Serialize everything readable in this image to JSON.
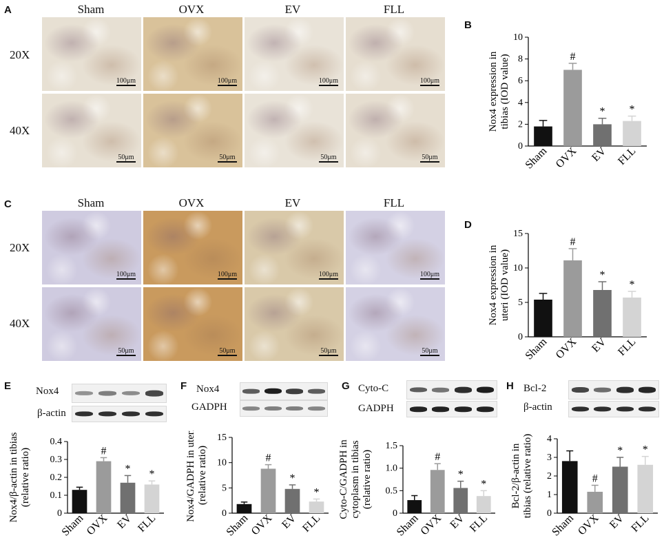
{
  "panels": {
    "A": {
      "letter": "A",
      "columns": [
        "Sham",
        "OVX",
        "EV",
        "FLL"
      ],
      "rows": [
        "20X",
        "40X"
      ],
      "scale_20x": "100μm",
      "scale_40x": "50μm",
      "tissue_colors": [
        "#e7e0d3",
        "#d9c29a",
        "#e9e3d8",
        "#e6ded0"
      ]
    },
    "C": {
      "letter": "C",
      "columns": [
        "Sham",
        "OVX",
        "EV",
        "FLL"
      ],
      "rows": [
        "20X",
        "40X"
      ],
      "scale_20x": "100μm",
      "scale_40x": "50μm",
      "tissue_colors": [
        "#cfcbe0",
        "#c99a5e",
        "#d9c9a9",
        "#d4d1e4"
      ]
    },
    "E": {
      "letter": "E",
      "blots": [
        "Nox4",
        "β-actin"
      ]
    },
    "F": {
      "letter": "F",
      "blots": [
        "Nox4",
        "GADPH"
      ]
    },
    "G": {
      "letter": "G",
      "blots": [
        "Cyto-C",
        "GADPH"
      ]
    },
    "H": {
      "letter": "H",
      "blots": [
        "Bcl-2",
        "β-actin"
      ]
    }
  },
  "chart_data": [
    {
      "panel": "B",
      "type": "bar",
      "categories": [
        "Sham",
        "OVX",
        "EV",
        "FLL"
      ],
      "values": [
        1.8,
        7.0,
        2.0,
        2.3
      ],
      "errors": [
        0.55,
        0.6,
        0.55,
        0.45
      ],
      "annotations": [
        "",
        "#",
        "*",
        "*"
      ],
      "ylabel_lines": [
        "Nox4 expression in",
        "tibias  (IOD value)"
      ],
      "ylim": [
        0,
        10
      ],
      "yticks": [
        0,
        2,
        4,
        6,
        8,
        10
      ],
      "ytick_labels": [
        "0",
        "2",
        "4",
        "6",
        "8",
        "10"
      ],
      "colors": [
        "#111111",
        "#9b9b9b",
        "#707070",
        "#d4d4d4"
      ]
    },
    {
      "panel": "D",
      "type": "bar",
      "categories": [
        "Sham",
        "OVX",
        "EV",
        "FLL"
      ],
      "values": [
        5.4,
        11.1,
        6.8,
        5.7
      ],
      "errors": [
        0.9,
        1.7,
        1.2,
        0.9
      ],
      "annotations": [
        "",
        "#",
        "*",
        "*"
      ],
      "ylabel_lines": [
        "Nox4 expression  in",
        "uteri (IOD value)"
      ],
      "ylim": [
        0,
        15
      ],
      "yticks": [
        0,
        5,
        10,
        15
      ],
      "ytick_labels": [
        "0",
        "5",
        "10",
        "15"
      ],
      "colors": [
        "#111111",
        "#9b9b9b",
        "#707070",
        "#d4d4d4"
      ]
    },
    {
      "panel": "E",
      "type": "bar",
      "categories": [
        "Sham",
        "OVX",
        "EV",
        "FLL"
      ],
      "values": [
        0.13,
        0.29,
        0.17,
        0.16
      ],
      "errors": [
        0.015,
        0.02,
        0.04,
        0.02
      ],
      "annotations": [
        "",
        "#",
        "*",
        "*"
      ],
      "ylabel_lines": [
        "Nox4/β-actin  in tibias",
        "(relative ratio)"
      ],
      "ylim": [
        0,
        0.4
      ],
      "yticks": [
        0,
        0.1,
        0.2,
        0.3,
        0.4
      ],
      "ytick_labels": [
        "0",
        "0.1",
        "0.2",
        "0.3",
        "0.4"
      ],
      "colors": [
        "#111111",
        "#9b9b9b",
        "#707070",
        "#d4d4d4"
      ]
    },
    {
      "panel": "F",
      "type": "bar",
      "categories": [
        "Sham",
        "OVX",
        "EV",
        "FLL"
      ],
      "values": [
        1.8,
        8.8,
        4.8,
        2.3
      ],
      "errors": [
        0.4,
        0.8,
        0.8,
        0.5
      ],
      "annotations": [
        "",
        "#",
        "*",
        "*"
      ],
      "ylabel_lines": [
        "Nox4/GADPH in uteri",
        "(relative ratio)"
      ],
      "ylim": [
        0,
        15
      ],
      "yticks": [
        0,
        5,
        10,
        15
      ],
      "ytick_labels": [
        "0",
        "5",
        "10",
        "15"
      ],
      "colors": [
        "#111111",
        "#9b9b9b",
        "#707070",
        "#d4d4d4"
      ]
    },
    {
      "panel": "G",
      "type": "bar",
      "categories": [
        "Sham",
        "OVX",
        "EV",
        "FLL"
      ],
      "values": [
        0.29,
        0.96,
        0.56,
        0.38
      ],
      "errors": [
        0.1,
        0.14,
        0.15,
        0.12
      ],
      "annotations": [
        "",
        "#",
        "*",
        "*"
      ],
      "ylabel_lines": [
        "Cyto-C/GADPH in",
        "cytoplasm in tibias",
        "(relative ratio)"
      ],
      "ylim": [
        0,
        1.5
      ],
      "yticks": [
        0,
        0.5,
        1.0,
        1.5
      ],
      "ytick_labels": [
        "0",
        "0.5",
        "1.0",
        "1.5"
      ],
      "colors": [
        "#111111",
        "#9b9b9b",
        "#707070",
        "#d4d4d4"
      ]
    },
    {
      "panel": "H",
      "type": "bar",
      "categories": [
        "Sham",
        "OVX",
        "EV",
        "FLL"
      ],
      "values": [
        2.8,
        1.15,
        2.5,
        2.6
      ],
      "errors": [
        0.55,
        0.35,
        0.5,
        0.45
      ],
      "annotations": [
        "",
        "#",
        "*",
        "*"
      ],
      "ylabel_lines": [
        "Bcl-2/β-actin in",
        "tibias (relative ratio)"
      ],
      "ylim": [
        0,
        4
      ],
      "yticks": [
        0,
        1,
        2,
        3,
        4
      ],
      "ytick_labels": [
        "0",
        "1",
        "2",
        "3",
        "4"
      ],
      "colors": [
        "#111111",
        "#9b9b9b",
        "#707070",
        "#d4d4d4"
      ]
    }
  ]
}
